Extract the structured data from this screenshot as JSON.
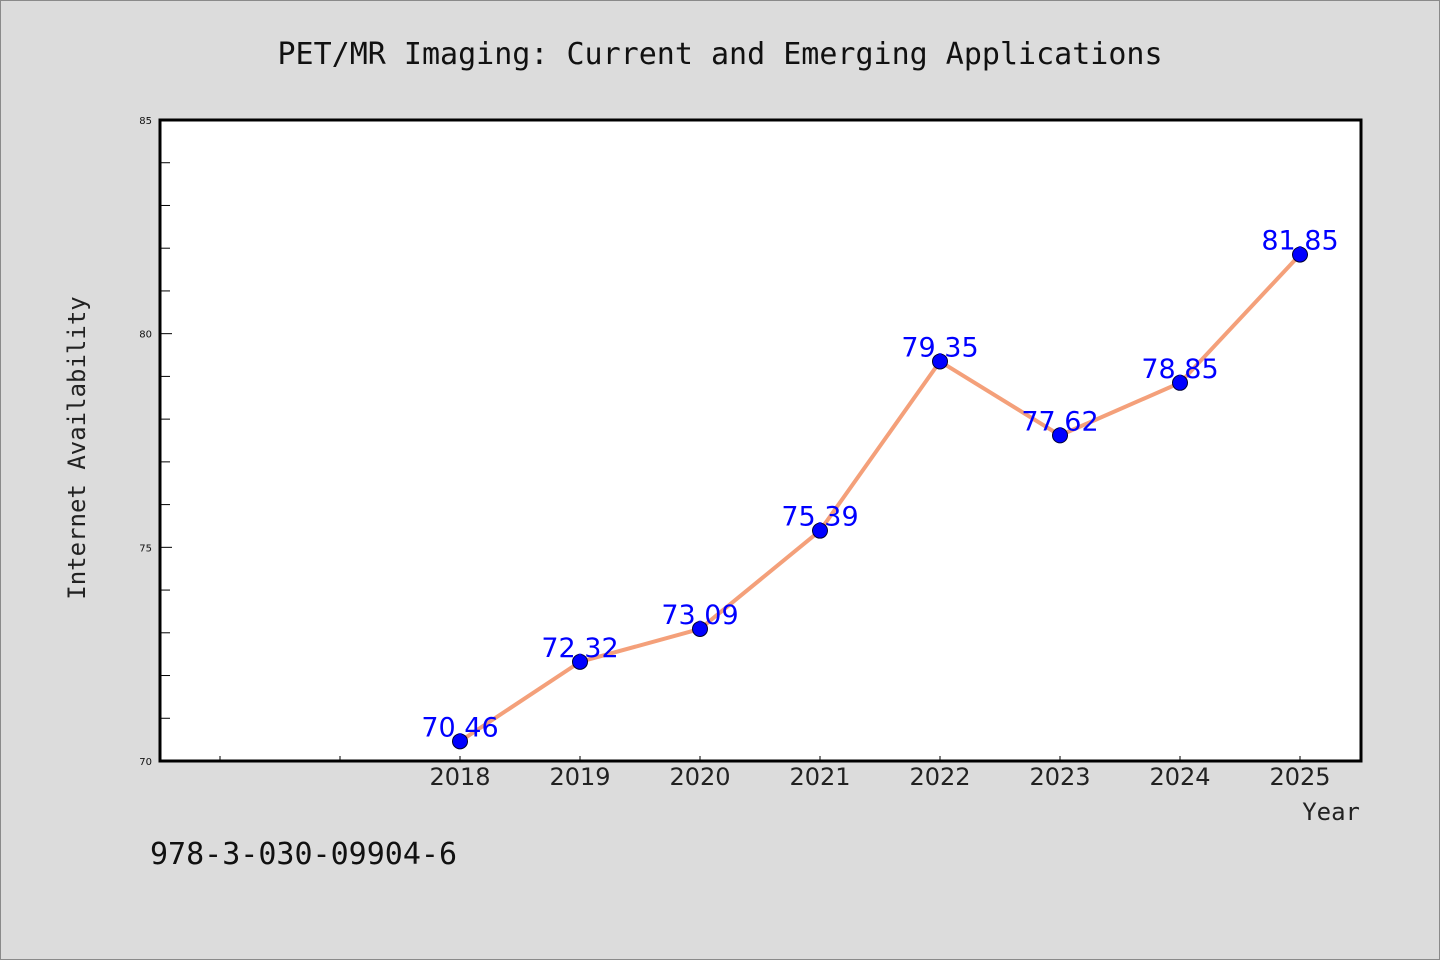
{
  "chart_data": {
    "type": "line",
    "title": "PET/MR Imaging: Current and Emerging Applications",
    "xlabel": "Year",
    "ylabel": "Internet Availability",
    "categories": [
      "2018",
      "2019",
      "2020",
      "2021",
      "2022",
      "2023",
      "2024",
      "2025"
    ],
    "values": [
      70.46,
      72.32,
      73.09,
      75.39,
      79.35,
      77.62,
      78.85,
      81.85
    ],
    "value_labels": [
      "70.46",
      "72.32",
      "73.09",
      "75.39",
      "79.35",
      "77.62",
      "78.85",
      "81.85"
    ],
    "ylim": [
      70,
      85
    ],
    "yticks": [
      "70",
      "75",
      "80",
      "85"
    ],
    "grid": false,
    "legend": "none",
    "colors": {
      "line": "#f4a07a",
      "marker": "#0000ff",
      "label": "#0000ff"
    }
  },
  "footer": {
    "isbn": "978-3-030-09904-6"
  }
}
